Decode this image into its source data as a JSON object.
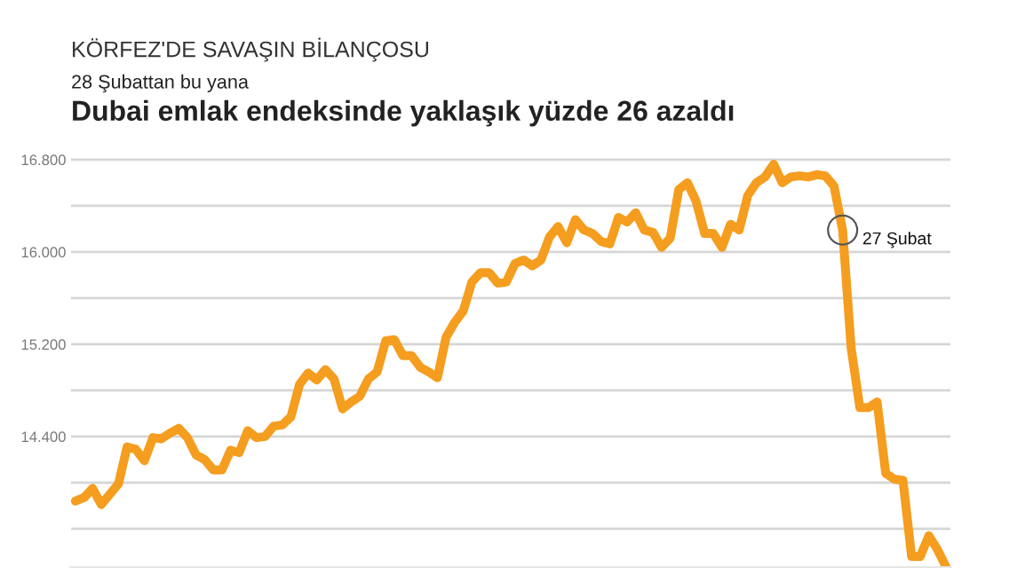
{
  "chart_data": {
    "type": "line",
    "title": "Dubai emlak endeksinde yaklaşık yüzde 26 azaldı",
    "subtitle": "28 Şubattan bu yana",
    "annotations": [
      "KÖRFEZ'DE SAVAŞIN BİLANÇOSU",
      "27 Şubat"
    ],
    "categories": [
      null,
      null,
      null,
      null,
      null,
      null,
      null,
      null,
      null,
      null,
      null,
      null,
      null,
      null,
      null,
      null,
      null,
      null,
      null,
      null,
      null,
      null,
      null,
      null,
      null,
      null,
      null,
      null,
      null,
      null,
      null,
      null,
      null,
      null,
      null,
      null,
      null,
      null,
      null,
      null,
      null,
      null,
      null,
      null,
      null,
      null,
      null,
      null,
      null,
      null,
      null,
      null,
      null,
      null,
      null,
      null,
      null,
      null,
      null,
      null,
      null,
      null,
      null,
      null,
      null,
      null,
      null,
      null,
      null,
      null,
      null,
      null,
      null,
      null,
      null,
      null,
      null,
      null,
      null,
      null,
      null,
      null,
      null,
      null,
      null,
      null,
      null,
      null,
      null,
      null,
      null,
      null,
      null,
      null,
      null,
      null,
      null,
      null,
      null,
      null,
      null,
      null
    ],
    "series": [
      {
        "color": "#f59d1e",
        "values": [
          13840,
          13870,
          13950,
          13810,
          13900,
          13990,
          14310,
          14290,
          14190,
          14390,
          14380,
          14430,
          14470,
          14390,
          14240,
          14200,
          14110,
          14110,
          14280,
          14260,
          14450,
          14390,
          14400,
          14490,
          14500,
          14570,
          14850,
          14950,
          14890,
          14980,
          14900,
          14640,
          14700,
          14750,
          14900,
          14960,
          15230,
          15240,
          15100,
          15100,
          15000,
          14960,
          14910,
          15260,
          15390,
          15490,
          15740,
          15820,
          15820,
          15730,
          15740,
          15900,
          15930,
          15880,
          15930,
          16130,
          16220,
          16080,
          16280,
          16190,
          16160,
          16090,
          16070,
          16300,
          16260,
          16340,
          16190,
          16170,
          16040,
          16120,
          16540,
          16600,
          16440,
          16160,
          16160,
          16040,
          16240,
          16190,
          16490,
          16600,
          16650,
          16760,
          16600,
          16650,
          16660,
          16650,
          16670,
          16660,
          16570,
          16190,
          15160,
          14650,
          14650,
          14700,
          14080,
          14030,
          14020,
          13360,
          13360,
          13540,
          13420,
          13270
        ]
      }
    ],
    "ylim": [
      13260,
      16840
    ],
    "yticks": [
      {
        "value": 13600,
        "label": null
      },
      {
        "value": 14000,
        "label": null
      },
      {
        "value": 14400,
        "label": "14.400"
      },
      {
        "value": 14800,
        "label": null
      },
      {
        "value": 15200,
        "label": "15.200"
      },
      {
        "value": 15600,
        "label": null
      },
      {
        "value": 16000,
        "label": "16.000"
      },
      {
        "value": 16400,
        "label": null
      },
      {
        "value": 16800,
        "label": "16.800"
      }
    ],
    "grid": "y",
    "tick_labels": "y"
  }
}
